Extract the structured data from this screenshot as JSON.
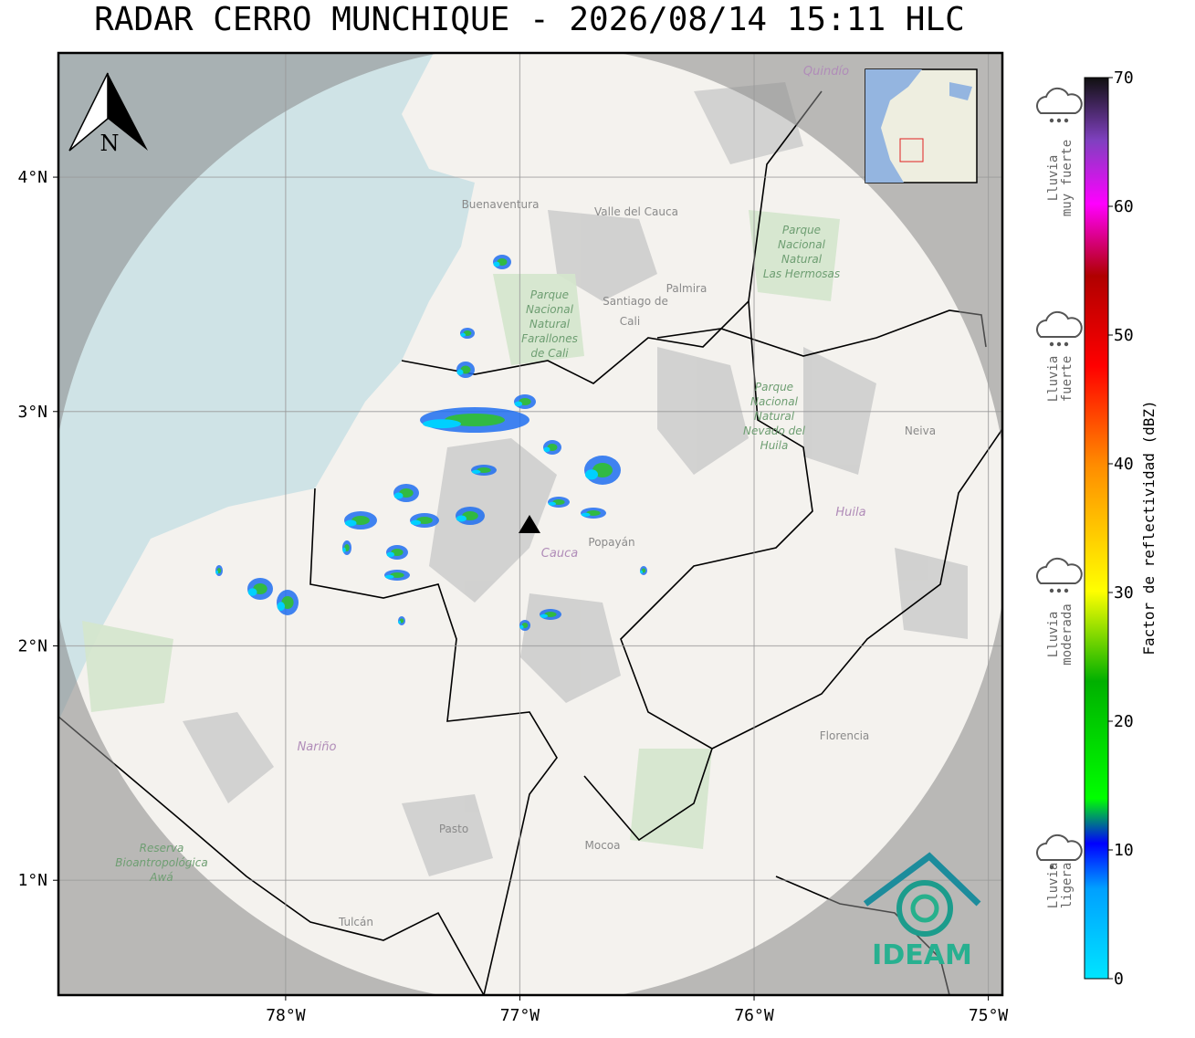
{
  "title": "RADAR CERRO MUNCHIQUE - 2026/08/14 15:11 HLC",
  "map": {
    "xlim": [
      -78.97,
      -74.94
    ],
    "ylim": [
      0.51,
      4.53
    ],
    "xticks": [
      {
        "value": -78,
        "label": "78°W"
      },
      {
        "value": -77,
        "label": "77°W"
      },
      {
        "value": -76,
        "label": "76°W"
      },
      {
        "value": -75,
        "label": "75°W"
      }
    ],
    "yticks": [
      {
        "value": 4,
        "label": "4°N"
      },
      {
        "value": 3,
        "label": "3°N"
      },
      {
        "value": 2,
        "label": "2°N"
      },
      {
        "value": 1,
        "label": "1°N"
      }
    ],
    "north": "N",
    "places": [
      "Buenaventura",
      "Valle del Cauca",
      "Santiago de",
      "Cali",
      "Palmira",
      "Neiva",
      "Huila",
      "Cauca",
      "Popayán",
      "Nariño",
      "Pasto",
      "Mocoa",
      "Florencia",
      "Tulcán",
      "Quindío"
    ],
    "parks": [
      [
        "Parque",
        "Nacional",
        "Natural",
        "Farallones",
        "de Cali"
      ],
      [
        "Parque",
        "Nacional",
        "Natural",
        "Las Hermosas"
      ],
      [
        "Parque",
        "Nacional",
        "Natural",
        "Nevado del",
        "Huila"
      ],
      [
        "Reserva",
        "Bioantropológica",
        "Awá"
      ]
    ],
    "logo": "IDEAM"
  },
  "colorbar": {
    "label": "Factor de reflectividad (dBZ)",
    "lim": [
      0,
      70
    ],
    "ticks": [
      0,
      10,
      20,
      30,
      40,
      50,
      60,
      70
    ],
    "categories": [
      [
        "Lluvia",
        "muy fuerte"
      ],
      [
        "Lluvia",
        "fuerte"
      ],
      [
        "Lluvia",
        "moderada"
      ],
      [
        "Lluvia",
        "ligera"
      ]
    ]
  }
}
